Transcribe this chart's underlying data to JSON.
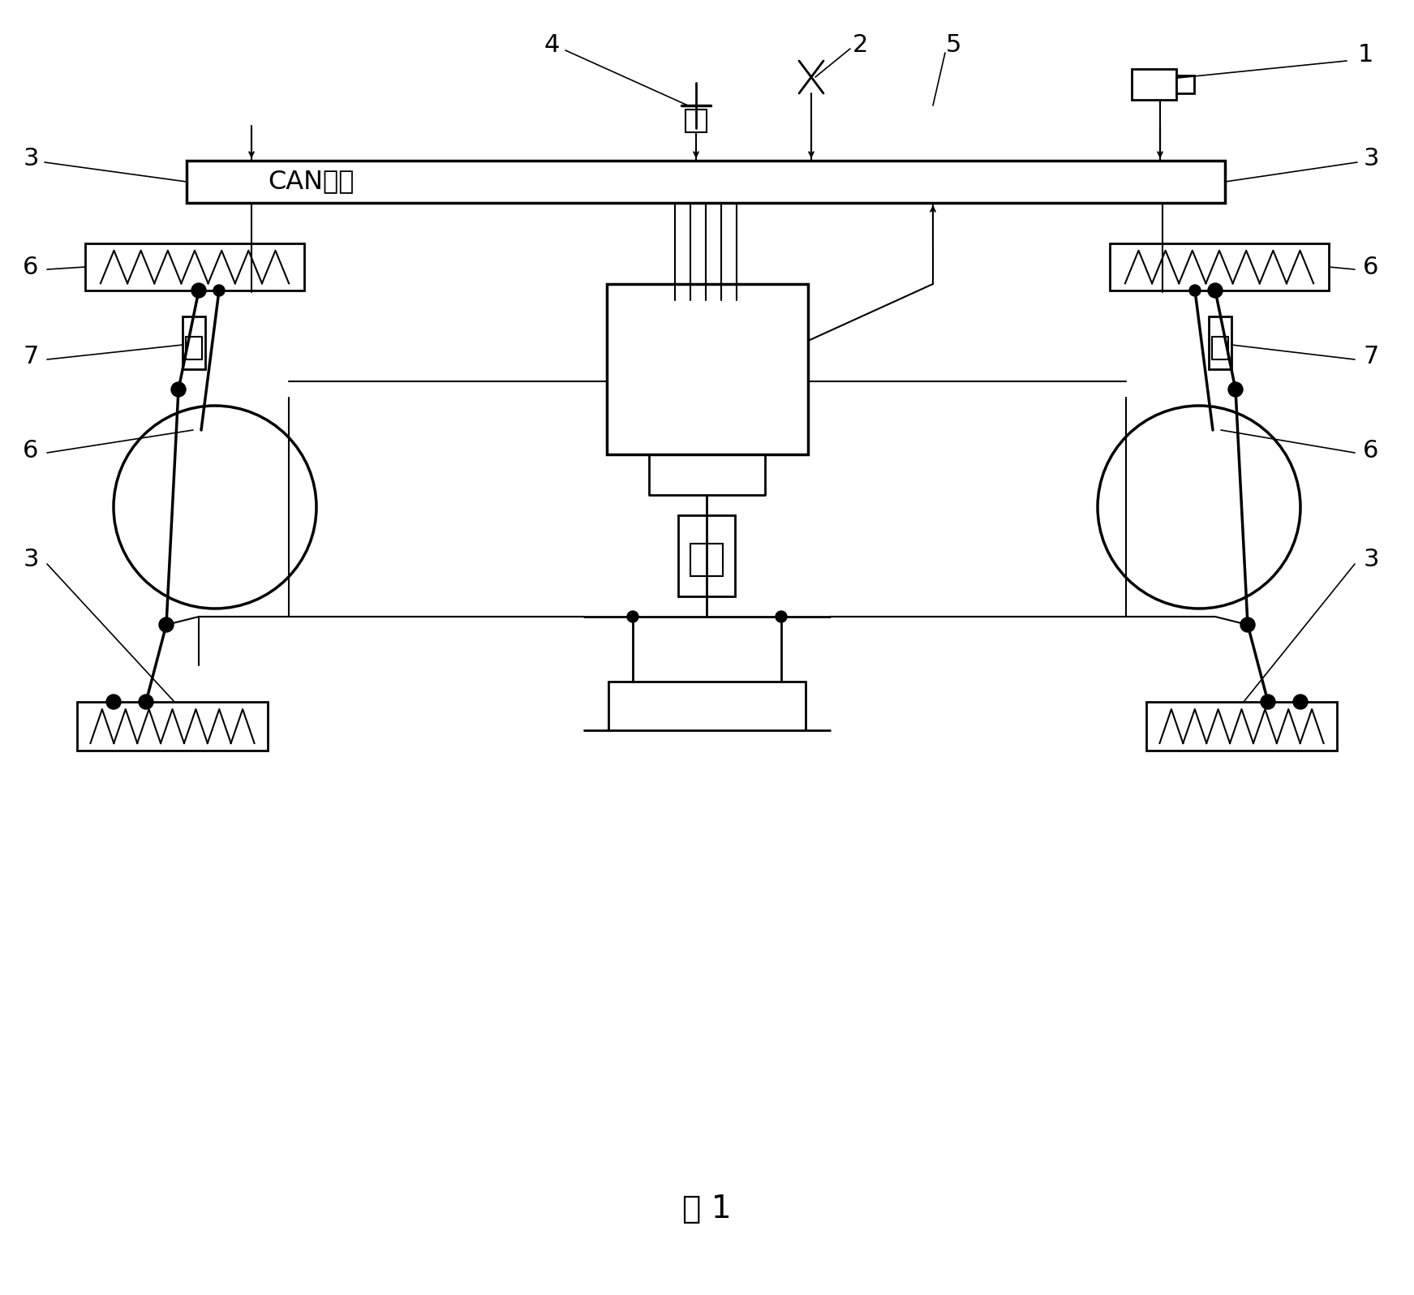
{
  "title": "图 1",
  "background": "#ffffff",
  "line_color": "#000000",
  "can_bus_label": "CAN总线"
}
